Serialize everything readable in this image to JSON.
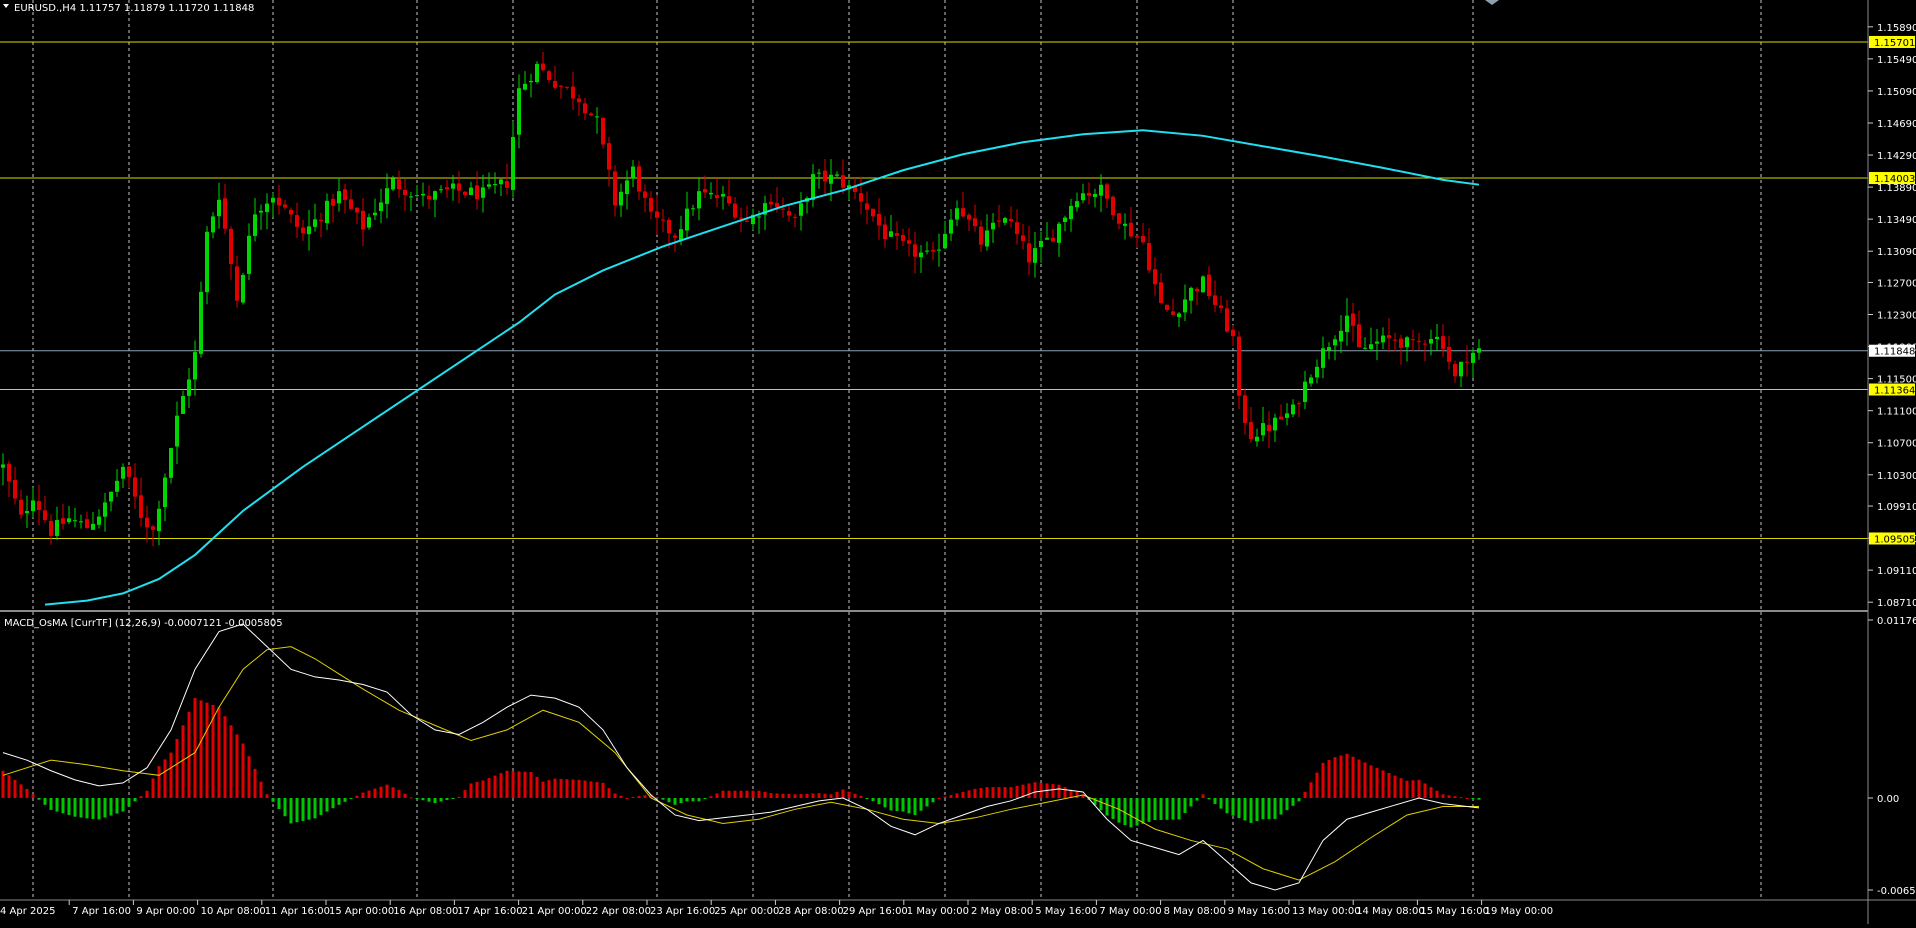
{
  "header": {
    "symbol_info": "EURUSD.,H4  1.11757 1.11879 1.11720 1.11848",
    "indicator_info": "MACD_OsMA [CurrTF] (12,26,9) -0.0007121 -0.0005805"
  },
  "colors": {
    "background": "#000000",
    "grid": "#c8c8c8",
    "bull": "#00d600",
    "bear": "#e00000",
    "hline": "#d8d800",
    "hline_label_bg": "#ffff00",
    "current_line": "#8ca0b4",
    "ma": "#20e0f0",
    "macd_main": "#ffffff",
    "macd_signal": "#e0d000",
    "osma_pos": "#e00000",
    "osma_neg": "#00c800"
  },
  "price_axis": {
    "ticks": [
      "1.15890",
      "1.15490",
      "1.15090",
      "1.14690",
      "1.14290",
      "1.13890",
      "1.13490",
      "1.13090",
      "1.12700",
      "1.12300",
      "1.11900",
      "1.11500",
      "1.11100",
      "1.10700",
      "1.10300",
      "1.09910",
      "1.09510",
      "1.09110",
      "1.08710"
    ],
    "ylim": [
      1.0865,
      1.1605
    ]
  },
  "h_lines": [
    {
      "value": 1.15701,
      "label": "1.15701"
    },
    {
      "value": 1.14003,
      "label": "1.14003"
    },
    {
      "value": 1.11364,
      "label": "1.11364"
    },
    {
      "value": 1.09505,
      "label": "1.09505"
    }
  ],
  "current_price": {
    "value": 1.11848,
    "label": "1.11848"
  },
  "macd_axis": {
    "labels": [
      "0.0117613",
      "0.00",
      "-0.0065035"
    ],
    "values": [
      0.0117613,
      0.0,
      -0.0065035
    ]
  },
  "time_axis": {
    "labels": [
      "4 Apr 2025",
      "7 Apr 16:00",
      "9 Apr 00:00",
      "10 Apr 08:00",
      "11 Apr 16:00",
      "15 Apr 00:00",
      "16 Apr 08:00",
      "17 Apr 16:00",
      "21 Apr 00:00",
      "22 Apr 08:00",
      "23 Apr 16:00",
      "25 Apr 00:00",
      "28 Apr 08:00",
      "29 Apr 16:00",
      "1 May 00:00",
      "2 May 08:00",
      "5 May 16:00",
      "7 May 00:00",
      "8 May 08:00",
      "9 May 16:00",
      "13 May 00:00",
      "14 May 08:00",
      "15 May 16:00",
      "19 May 00:00"
    ]
  },
  "chart_data": {
    "type": "candlestick",
    "title": "EURUSD.,H4",
    "bar_count": 177,
    "price_path": [
      [
        0,
        1.104
      ],
      [
        3,
        1.0975
      ],
      [
        5,
        1.1005
      ],
      [
        8,
        1.096
      ],
      [
        11,
        1.0975
      ],
      [
        14,
        1.0965
      ],
      [
        17,
        1.099
      ],
      [
        20,
        1.104
      ],
      [
        23,
        1.098
      ],
      [
        25,
        1.096
      ],
      [
        27,
        1.103
      ],
      [
        29,
        1.11
      ],
      [
        32,
        1.118
      ],
      [
        34,
        1.133
      ],
      [
        36,
        1.138
      ],
      [
        39,
        1.125
      ],
      [
        42,
        1.136
      ],
      [
        45,
        1.138
      ],
      [
        50,
        1.133
      ],
      [
        56,
        1.138
      ],
      [
        60,
        1.134
      ],
      [
        65,
        1.1395
      ],
      [
        70,
        1.1375
      ],
      [
        75,
        1.1385
      ],
      [
        80,
        1.138
      ],
      [
        84,
        1.1395
      ],
      [
        86,
        1.151
      ],
      [
        89,
        1.154
      ],
      [
        92,
        1.152
      ],
      [
        96,
        1.15
      ],
      [
        99,
        1.147
      ],
      [
        102,
        1.137
      ],
      [
        105,
        1.141
      ],
      [
        108,
        1.135
      ],
      [
        112,
        1.133
      ],
      [
        116,
        1.138
      ],
      [
        120,
        1.1375
      ],
      [
        124,
        1.1345
      ],
      [
        128,
        1.1375
      ],
      [
        132,
        1.1345
      ],
      [
        135,
        1.14
      ],
      [
        139,
        1.14
      ],
      [
        143,
        1.1375
      ],
      [
        147,
        1.133
      ],
      [
        151,
        1.131
      ],
      [
        155,
        1.13
      ],
      [
        159,
        1.137
      ],
      [
        163,
        1.132
      ],
      [
        167,
        1.1355
      ],
      [
        171,
        1.13
      ],
      [
        175,
        1.133
      ],
      [
        179,
        1.138
      ],
      [
        183,
        1.1385
      ],
      [
        187,
        1.134
      ],
      [
        190,
        1.132
      ],
      [
        193,
        1.124
      ],
      [
        195,
        1.123
      ],
      [
        198,
        1.126
      ],
      [
        200,
        1.127
      ],
      [
        203,
        1.123
      ],
      [
        205,
        1.12
      ],
      [
        206,
        1.112
      ],
      [
        208,
        1.108
      ],
      [
        211,
        1.109
      ],
      [
        215,
        1.111
      ],
      [
        218,
        1.116
      ],
      [
        221,
        1.1195
      ],
      [
        224,
        1.123
      ],
      [
        226,
        1.1185
      ],
      [
        229,
        1.1195
      ],
      [
        232,
        1.12
      ],
      [
        235,
        1.119
      ],
      [
        238,
        1.1205
      ],
      [
        240,
        1.1195
      ],
      [
        242,
        1.115
      ],
      [
        244,
        1.118
      ],
      [
        246,
        1.11848
      ]
    ],
    "ma_path": [
      [
        7,
        1.0868
      ],
      [
        14,
        1.0873
      ],
      [
        20,
        1.0882
      ],
      [
        26,
        1.09
      ],
      [
        32,
        1.093
      ],
      [
        40,
        1.0985
      ],
      [
        50,
        1.104
      ],
      [
        60,
        1.109
      ],
      [
        70,
        1.114
      ],
      [
        80,
        1.119
      ],
      [
        86,
        1.122
      ],
      [
        92,
        1.1255
      ],
      [
        100,
        1.1285
      ],
      [
        110,
        1.1315
      ],
      [
        120,
        1.134
      ],
      [
        130,
        1.1365
      ],
      [
        140,
        1.1385
      ],
      [
        150,
        1.141
      ],
      [
        160,
        1.143
      ],
      [
        170,
        1.1445
      ],
      [
        180,
        1.1455
      ],
      [
        190,
        1.146
      ],
      [
        200,
        1.1453
      ],
      [
        210,
        1.144
      ],
      [
        220,
        1.1427
      ],
      [
        230,
        1.1413
      ],
      [
        240,
        1.1398
      ],
      [
        246,
        1.1392
      ]
    ],
    "macd_main_path": [
      [
        0,
        0.003
      ],
      [
        4,
        0.0025
      ],
      [
        8,
        0.0018
      ],
      [
        12,
        0.0012
      ],
      [
        16,
        0.0008
      ],
      [
        20,
        0.001
      ],
      [
        24,
        0.002
      ],
      [
        28,
        0.0045
      ],
      [
        32,
        0.0085
      ],
      [
        36,
        0.011
      ],
      [
        40,
        0.0115
      ],
      [
        44,
        0.01
      ],
      [
        48,
        0.0085
      ],
      [
        52,
        0.008
      ],
      [
        56,
        0.0078
      ],
      [
        60,
        0.0075
      ],
      [
        64,
        0.007
      ],
      [
        68,
        0.0055
      ],
      [
        72,
        0.0045
      ],
      [
        76,
        0.0042
      ],
      [
        80,
        0.005
      ],
      [
        84,
        0.006
      ],
      [
        88,
        0.0068
      ],
      [
        92,
        0.0066
      ],
      [
        96,
        0.006
      ],
      [
        100,
        0.0045
      ],
      [
        104,
        0.002
      ],
      [
        108,
        0.0002
      ],
      [
        112,
        -0.0012
      ],
      [
        116,
        -0.0016
      ],
      [
        120,
        -0.0014
      ],
      [
        124,
        -0.0012
      ],
      [
        128,
        -0.001
      ],
      [
        132,
        -0.0006
      ],
      [
        136,
        -0.0002
      ],
      [
        140,
        0.0
      ],
      [
        144,
        -0.0008
      ],
      [
        148,
        -0.002
      ],
      [
        152,
        -0.0026
      ],
      [
        156,
        -0.0018
      ],
      [
        160,
        -0.0012
      ],
      [
        164,
        -0.0006
      ],
      [
        168,
        -0.0002
      ],
      [
        172,
        0.0004
      ],
      [
        176,
        0.0006
      ],
      [
        180,
        0.0004
      ],
      [
        184,
        -0.0015
      ],
      [
        188,
        -0.003
      ],
      [
        192,
        -0.0035
      ],
      [
        196,
        -0.004
      ],
      [
        200,
        -0.003
      ],
      [
        204,
        -0.0045
      ],
      [
        208,
        -0.006
      ],
      [
        212,
        -0.0065
      ],
      [
        216,
        -0.006
      ],
      [
        220,
        -0.003
      ],
      [
        224,
        -0.0015
      ],
      [
        228,
        -0.001
      ],
      [
        232,
        -0.0005
      ],
      [
        236,
        0.0
      ],
      [
        240,
        -0.0004
      ],
      [
        244,
        -0.0006
      ],
      [
        246,
        -0.0007
      ]
    ],
    "macd_signal_path": [
      [
        0,
        0.0015
      ],
      [
        8,
        0.0025
      ],
      [
        14,
        0.0022
      ],
      [
        20,
        0.0018
      ],
      [
        26,
        0.0015
      ],
      [
        32,
        0.003
      ],
      [
        36,
        0.006
      ],
      [
        40,
        0.0085
      ],
      [
        44,
        0.0098
      ],
      [
        48,
        0.01
      ],
      [
        52,
        0.0092
      ],
      [
        56,
        0.0082
      ],
      [
        60,
        0.0072
      ],
      [
        66,
        0.0058
      ],
      [
        72,
        0.0048
      ],
      [
        78,
        0.0038
      ],
      [
        84,
        0.0045
      ],
      [
        90,
        0.0058
      ],
      [
        96,
        0.005
      ],
      [
        102,
        0.003
      ],
      [
        108,
        0.0
      ],
      [
        114,
        -0.0012
      ],
      [
        120,
        -0.0018
      ],
      [
        126,
        -0.0015
      ],
      [
        132,
        -0.0008
      ],
      [
        138,
        -0.0003
      ],
      [
        144,
        -0.0008
      ],
      [
        150,
        -0.0015
      ],
      [
        156,
        -0.0018
      ],
      [
        162,
        -0.0014
      ],
      [
        168,
        -0.0008
      ],
      [
        174,
        -0.0003
      ],
      [
        180,
        0.0002
      ],
      [
        186,
        -0.0008
      ],
      [
        192,
        -0.0022
      ],
      [
        198,
        -0.003
      ],
      [
        204,
        -0.0036
      ],
      [
        210,
        -0.005
      ],
      [
        216,
        -0.0058
      ],
      [
        222,
        -0.0045
      ],
      [
        228,
        -0.0028
      ],
      [
        234,
        -0.0012
      ],
      [
        240,
        -0.0006
      ],
      [
        246,
        -0.0006
      ]
    ]
  }
}
